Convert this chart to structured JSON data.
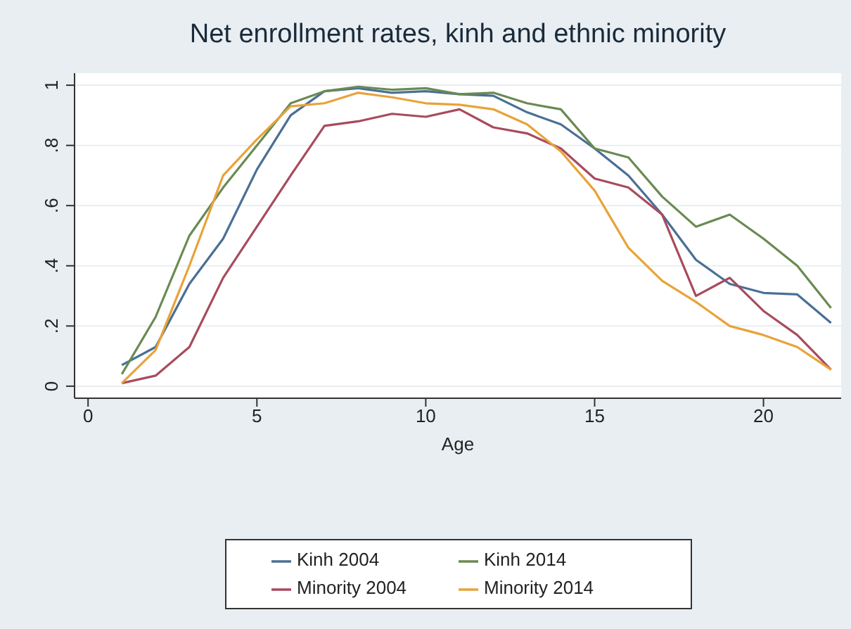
{
  "chart_data": {
    "type": "line",
    "title": "Net enrollment rates, kinh and ethnic minority",
    "xlabel": "Age",
    "x": [
      1,
      2,
      3,
      4,
      5,
      6,
      7,
      8,
      9,
      10,
      11,
      12,
      13,
      14,
      15,
      16,
      17,
      18,
      19,
      20,
      21,
      22
    ],
    "series": [
      {
        "name": "Kinh 2004",
        "color": "#4a6f94",
        "values": [
          0.07,
          0.13,
          0.34,
          0.49,
          0.72,
          0.9,
          0.98,
          0.99,
          0.975,
          0.98,
          0.97,
          0.965,
          0.91,
          0.87,
          0.79,
          0.7,
          0.57,
          0.42,
          0.34,
          0.31,
          0.305,
          0.21
        ]
      },
      {
        "name": "Minority 2004",
        "color": "#a84b5d",
        "values": [
          0.01,
          0.035,
          0.13,
          0.36,
          0.53,
          0.7,
          0.865,
          0.88,
          0.905,
          0.895,
          0.92,
          0.86,
          0.84,
          0.79,
          0.69,
          0.66,
          0.57,
          0.3,
          0.36,
          0.25,
          0.17,
          0.055
        ]
      },
      {
        "name": "Kinh 2014",
        "color": "#6a8a52",
        "values": [
          0.04,
          0.23,
          0.5,
          0.66,
          0.8,
          0.94,
          0.98,
          0.995,
          0.985,
          0.99,
          0.97,
          0.975,
          0.94,
          0.92,
          0.79,
          0.76,
          0.63,
          0.53,
          0.57,
          0.49,
          0.4,
          0.26
        ]
      },
      {
        "name": "Minority 2014",
        "color": "#e8a33a",
        "values": [
          0.01,
          0.12,
          0.4,
          0.7,
          0.82,
          0.93,
          0.94,
          0.975,
          0.96,
          0.94,
          0.935,
          0.92,
          0.87,
          0.78,
          0.65,
          0.46,
          0.35,
          0.28,
          0.2,
          0.17,
          0.13,
          0.055
        ]
      }
    ],
    "xlim": [
      -0.4,
      22.3
    ],
    "xticks": [
      0,
      5,
      10,
      15,
      20
    ],
    "ylim": [
      -0.04,
      1.04
    ],
    "yticks": [
      0,
      {
        "value": 0.2,
        "label": ".2"
      },
      {
        "value": 0.4,
        "label": ".4"
      },
      {
        "value": 0.6,
        "label": ".6"
      },
      {
        "value": 0.8,
        "label": ".8"
      },
      1
    ],
    "grid": "y",
    "legend": "bottom",
    "marker": "none",
    "line_style": "solid"
  }
}
